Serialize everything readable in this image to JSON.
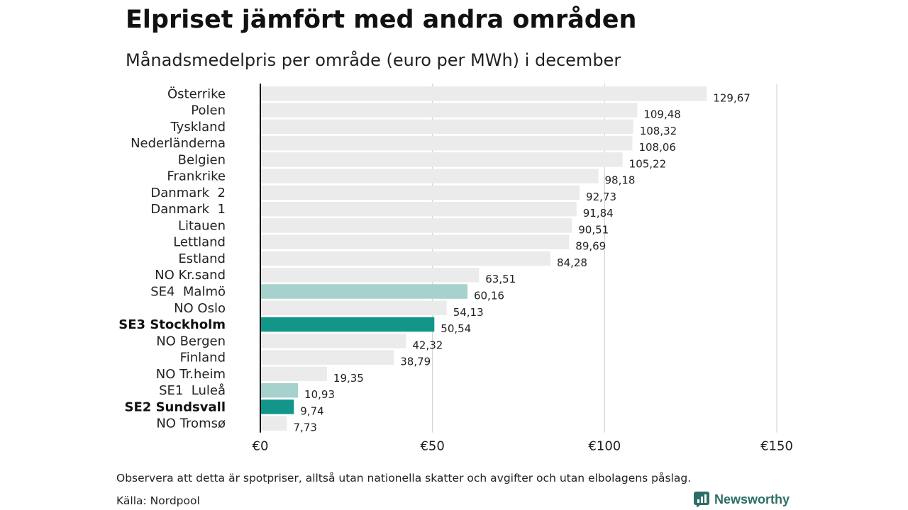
{
  "header": {
    "title": "Elpriset jämfört med andra områden",
    "subtitle": "Månadsmedelpris per område (euro per MWh) i december"
  },
  "footer": {
    "note": "Observera att detta är spotpriser, alltså utan nationella skatter och avgifter och utan elbolagens påslag.",
    "source": "Källa: Nordpool",
    "brand": "Newsworthy"
  },
  "colors": {
    "default_bar": "#ebebeb",
    "highlight_bar": "#12968a",
    "secondary_bar": "#a6d1cc",
    "gridline": "#cccccc",
    "axis": "#000000",
    "brand": "#2c6e66"
  },
  "chart_data": {
    "type": "bar",
    "orientation": "horizontal",
    "title": "Elpriset jämfört med andra områden",
    "subtitle": "Månadsmedelpris per område (euro per MWh) i december",
    "xlim": [
      0,
      150
    ],
    "x_ticks": [
      0,
      50,
      100,
      150
    ],
    "x_tick_labels": [
      "€0",
      "€50",
      "€100",
      "€150"
    ],
    "grid": "vertical",
    "categories": [
      {
        "name": "Österrike",
        "value": 129.67,
        "value_label": "129,67",
        "style": "default"
      },
      {
        "name": "Polen",
        "value": 109.48,
        "value_label": "109,48",
        "style": "default"
      },
      {
        "name": "Tyskland",
        "value": 108.32,
        "value_label": "108,32",
        "style": "default"
      },
      {
        "name": "Nederländerna",
        "value": 108.06,
        "value_label": "108,06",
        "style": "default"
      },
      {
        "name": "Belgien",
        "value": 105.22,
        "value_label": "105,22",
        "style": "default"
      },
      {
        "name": "Frankrike",
        "value": 98.18,
        "value_label": "98,18",
        "style": "default"
      },
      {
        "name": "Danmark  2",
        "value": 92.73,
        "value_label": "92,73",
        "style": "default"
      },
      {
        "name": "Danmark  1",
        "value": 91.84,
        "value_label": "91,84",
        "style": "default"
      },
      {
        "name": "Litauen",
        "value": 90.51,
        "value_label": "90,51",
        "style": "default"
      },
      {
        "name": "Lettland",
        "value": 89.69,
        "value_label": "89,69",
        "style": "default"
      },
      {
        "name": "Estland",
        "value": 84.28,
        "value_label": "84,28",
        "style": "default"
      },
      {
        "name": "NO Kr.sand",
        "value": 63.51,
        "value_label": "63,51",
        "style": "default"
      },
      {
        "name": "SE4  Malmö",
        "value": 60.16,
        "value_label": "60,16",
        "style": "secondary"
      },
      {
        "name": "NO Oslo",
        "value": 54.13,
        "value_label": "54,13",
        "style": "default"
      },
      {
        "name": "SE3 Stockholm",
        "value": 50.54,
        "value_label": "50,54",
        "style": "highlight"
      },
      {
        "name": "NO Bergen",
        "value": 42.32,
        "value_label": "42,32",
        "style": "default"
      },
      {
        "name": "Finland",
        "value": 38.79,
        "value_label": "38,79",
        "style": "default"
      },
      {
        "name": "NO Tr.heim",
        "value": 19.35,
        "value_label": "19,35",
        "style": "default"
      },
      {
        "name": "SE1  Luleå",
        "value": 10.93,
        "value_label": "10,93",
        "style": "secondary"
      },
      {
        "name": "SE2 Sundsvall",
        "value": 9.74,
        "value_label": "9,74",
        "style": "highlight"
      },
      {
        "name": "NO Tromsø",
        "value": 7.73,
        "value_label": "7,73",
        "style": "default"
      }
    ]
  }
}
